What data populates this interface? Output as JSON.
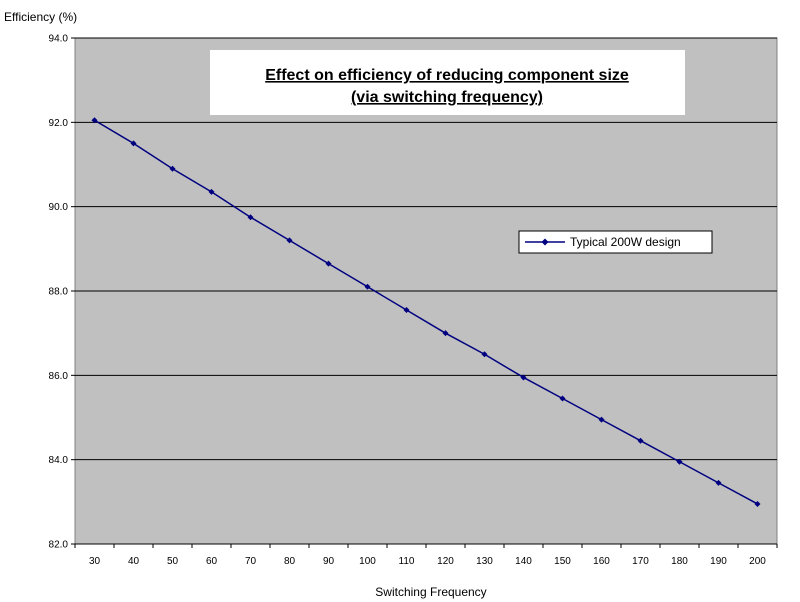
{
  "chart_data": {
    "type": "line",
    "title_lines": [
      "Effect on efficiency of reducing component size",
      "(via switching frequency)"
    ],
    "xlabel": "Switching Frequency",
    "ylabel": "Efficiency (%)",
    "x": [
      30,
      40,
      50,
      60,
      70,
      80,
      90,
      100,
      110,
      120,
      130,
      140,
      150,
      160,
      170,
      180,
      190,
      200
    ],
    "x_tick_labels": [
      "30",
      "40",
      "50",
      "60",
      "70",
      "80",
      "90",
      "100",
      "110",
      "120",
      "130",
      "140",
      "150",
      "160",
      "170",
      "180",
      "190",
      "200"
    ],
    "ylim": [
      82.0,
      94.0
    ],
    "y_tick_labels": [
      "82.0",
      "84.0",
      "86.0",
      "88.0",
      "90.0",
      "92.0",
      "94.0"
    ],
    "y_ticks": [
      82,
      84,
      86,
      88,
      90,
      92,
      94
    ],
    "grid": true,
    "legend_position": "right",
    "series": [
      {
        "name": "Typical 200W design",
        "color": "#000080",
        "values": [
          92.05,
          91.5,
          90.9,
          90.35,
          89.75,
          89.2,
          88.65,
          88.1,
          87.55,
          87.0,
          86.5,
          85.95,
          85.45,
          84.95,
          84.45,
          83.95,
          83.45,
          82.95
        ]
      }
    ],
    "colors": {
      "plot_background": "#c0c0c0",
      "gridline": "#000000",
      "title_box": "#ffffff",
      "legend_box": "#ffffff"
    }
  }
}
